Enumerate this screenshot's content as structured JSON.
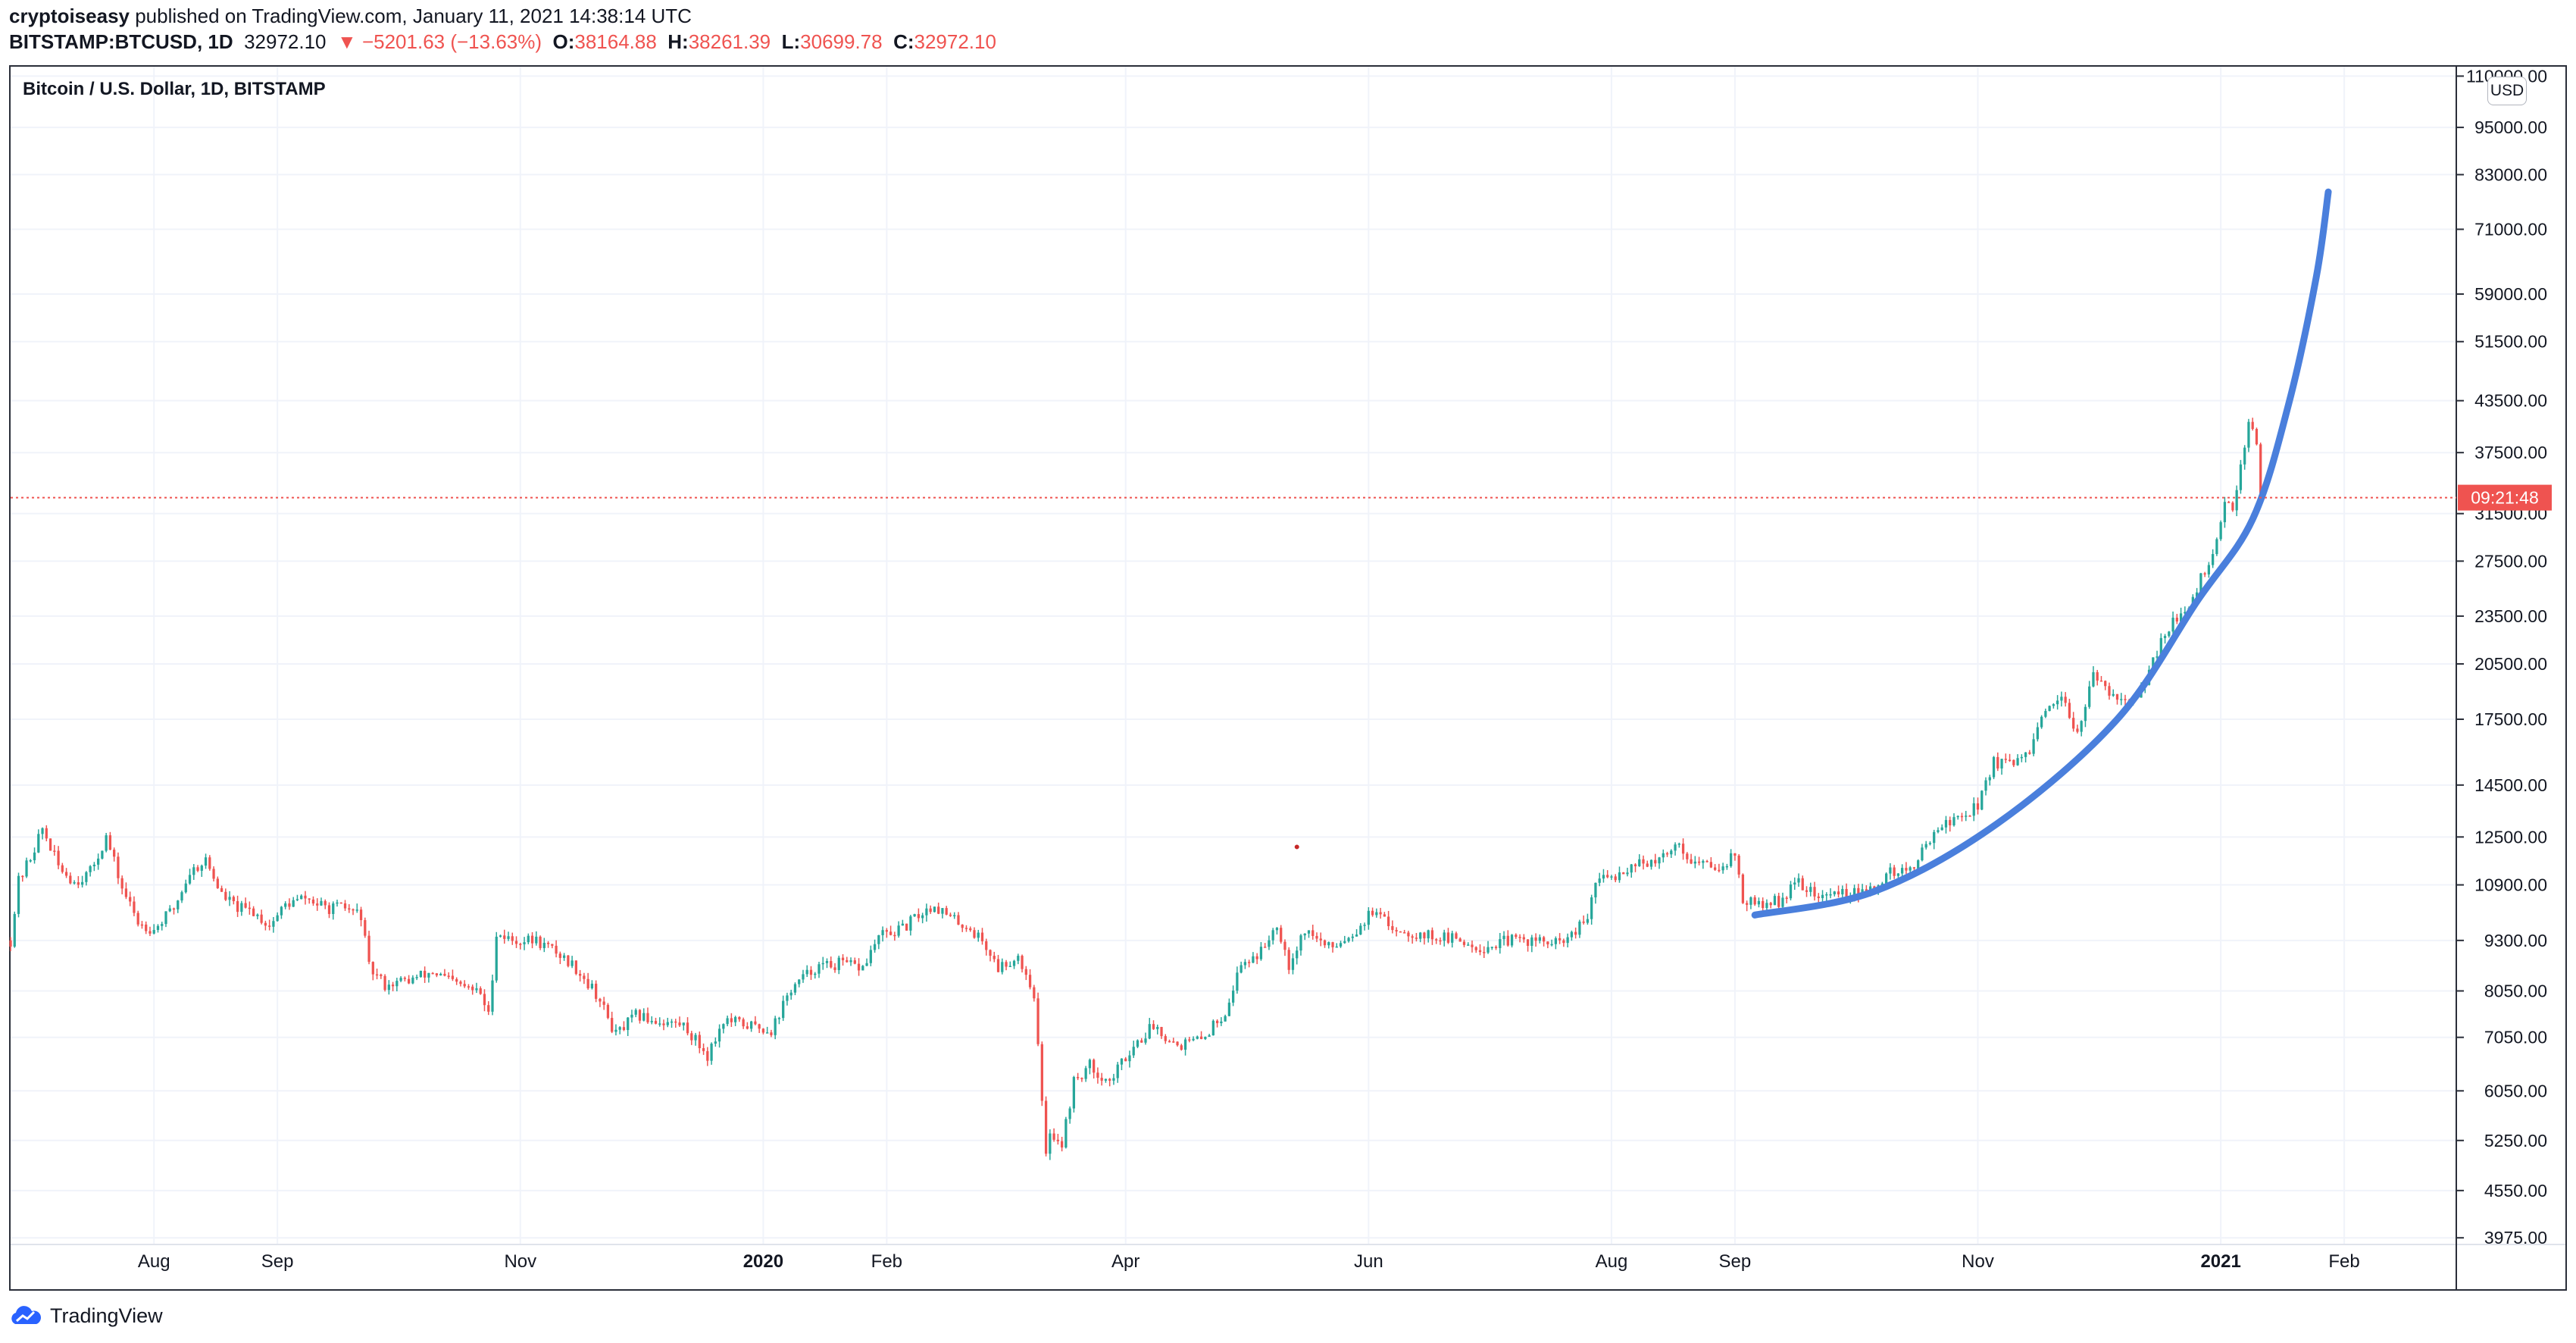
{
  "header": {
    "publisher": "cryptoiseasy",
    "published_text": "published on TradingView.com, January 11, 2021 14:38:14 UTC"
  },
  "ticker": {
    "symbol": "BITSTAMP:BTCUSD, 1D",
    "last": "32972.10",
    "change": "▼ −5201.63 (−13.63%)",
    "o_label": "O:",
    "o": "38164.88",
    "h_label": "H:",
    "h": "38261.39",
    "l_label": "L:",
    "l": "30699.78",
    "c_label": "C:",
    "c": "32972.10"
  },
  "legend": {
    "title": "Bitcoin / U.S. Dollar, 1D, BITSTAMP"
  },
  "price_axis": {
    "currency": "USD",
    "countdown": "09:21:48"
  },
  "footer": {
    "brand": "TradingView"
  },
  "colors": {
    "up": "#26a69a",
    "down": "#ef5350",
    "curve": "#4a7fdc",
    "last_line": "#ef5350",
    "grid": "#f0f3fa"
  },
  "chart_data": {
    "type": "candlestick",
    "scale": "log",
    "ylim": [
      3900,
      113000
    ],
    "yticks": [
      3975,
      4550,
      5250,
      6050,
      7050,
      8050,
      9300,
      10900,
      12500,
      14500,
      17500,
      20500,
      23500,
      27500,
      31500,
      37500,
      43500,
      51500,
      59000,
      71000,
      83000,
      95000,
      110000
    ],
    "ytick_labels": [
      "3975.00",
      "4550.00",
      "5250.00",
      "6050.00",
      "7050.00",
      "8050.00",
      "9300.00",
      "10900.00",
      "12500.00",
      "14500.00",
      "17500.00",
      "20500.00",
      "23500.00",
      "27500.00",
      "31500.00",
      "37500.00",
      "43500.00",
      "51500.00",
      "59000.00",
      "71000.00",
      "83000.00",
      "95000.00",
      "110000.00"
    ],
    "xlim": [
      "2019-06-26",
      "2021-02-28"
    ],
    "xticks": [
      {
        "date": "2019-08-01",
        "label": "Aug"
      },
      {
        "date": "2019-09-01",
        "label": "Sep"
      },
      {
        "date": "2019-11-01",
        "label": "Nov"
      },
      {
        "date": "2020-01-01",
        "label": "2020"
      },
      {
        "date": "2020-02-01",
        "label": "Feb"
      },
      {
        "date": "2020-04-01",
        "label": "Apr"
      },
      {
        "date": "2020-06-01",
        "label": "Jun"
      },
      {
        "date": "2020-08-01",
        "label": "Aug"
      },
      {
        "date": "2020-09-01",
        "label": "Sep"
      },
      {
        "date": "2020-11-01",
        "label": "Nov"
      },
      {
        "date": "2021-01-01",
        "label": "2021"
      },
      {
        "date": "2021-02-01",
        "label": "Feb"
      }
    ],
    "close_path": [
      [
        "2019-06-26",
        9300
      ],
      [
        "2019-06-28",
        11000
      ],
      [
        "2019-07-01",
        11800
      ],
      [
        "2019-07-04",
        12800
      ],
      [
        "2019-07-08",
        11500
      ],
      [
        "2019-07-12",
        11000
      ],
      [
        "2019-07-16",
        11300
      ],
      [
        "2019-07-20",
        12500
      ],
      [
        "2019-07-24",
        10800
      ],
      [
        "2019-07-28",
        9800
      ],
      [
        "2019-08-01",
        9600
      ],
      [
        "2019-08-06",
        10200
      ],
      [
        "2019-08-10",
        11300
      ],
      [
        "2019-08-14",
        11700
      ],
      [
        "2019-08-18",
        10600
      ],
      [
        "2019-08-22",
        10200
      ],
      [
        "2019-08-26",
        10100
      ],
      [
        "2019-08-30",
        9700
      ],
      [
        "2019-09-03",
        10300
      ],
      [
        "2019-09-08",
        10500
      ],
      [
        "2019-09-13",
        10200
      ],
      [
        "2019-09-18",
        10200
      ],
      [
        "2019-09-22",
        10000
      ],
      [
        "2019-09-24",
        8600
      ],
      [
        "2019-09-28",
        8200
      ],
      [
        "2019-10-04",
        8300
      ],
      [
        "2019-10-10",
        8500
      ],
      [
        "2019-10-16",
        8200
      ],
      [
        "2019-10-22",
        8000
      ],
      [
        "2019-10-24",
        7500
      ],
      [
        "2019-10-26",
        9500
      ],
      [
        "2019-10-30",
        9300
      ],
      [
        "2019-11-05",
        9300
      ],
      [
        "2019-11-10",
        9000
      ],
      [
        "2019-11-15",
        8600
      ],
      [
        "2019-11-20",
        8000
      ],
      [
        "2019-11-25",
        7100
      ],
      [
        "2019-11-30",
        7500
      ],
      [
        "2019-12-05",
        7400
      ],
      [
        "2019-12-12",
        7300
      ],
      [
        "2019-12-18",
        6700
      ],
      [
        "2019-12-22",
        7400
      ],
      [
        "2019-12-28",
        7300
      ],
      [
        "2020-01-03",
        7200
      ],
      [
        "2020-01-08",
        8100
      ],
      [
        "2020-01-14",
        8600
      ],
      [
        "2020-01-20",
        8700
      ],
      [
        "2020-01-26",
        8600
      ],
      [
        "2020-01-30",
        9400
      ],
      [
        "2020-02-05",
        9600
      ],
      [
        "2020-02-09",
        10000
      ],
      [
        "2020-02-13",
        10300
      ],
      [
        "2020-02-17",
        9900
      ],
      [
        "2020-02-21",
        9700
      ],
      [
        "2020-02-25",
        9300
      ],
      [
        "2020-02-29",
        8600
      ],
      [
        "2020-03-05",
        8900
      ],
      [
        "2020-03-09",
        8000
      ],
      [
        "2020-03-12",
        5000
      ],
      [
        "2020-03-13",
        5400
      ],
      [
        "2020-03-16",
        5200
      ],
      [
        "2020-03-19",
        6200
      ],
      [
        "2020-03-23",
        6500
      ],
      [
        "2020-03-28",
        6200
      ],
      [
        "2020-04-02",
        6800
      ],
      [
        "2020-04-08",
        7300
      ],
      [
        "2020-04-14",
        6900
      ],
      [
        "2020-04-20",
        7000
      ],
      [
        "2020-04-26",
        7600
      ],
      [
        "2020-04-30",
        8700
      ],
      [
        "2020-05-05",
        9000
      ],
      [
        "2020-05-09",
        9800
      ],
      [
        "2020-05-12",
        8700
      ],
      [
        "2020-05-16",
        9600
      ],
      [
        "2020-05-22",
        9100
      ],
      [
        "2020-05-28",
        9500
      ],
      [
        "2020-06-02",
        10100
      ],
      [
        "2020-06-06",
        9700
      ],
      [
        "2020-06-12",
        9500
      ],
      [
        "2020-06-18",
        9400
      ],
      [
        "2020-06-24",
        9300
      ],
      [
        "2020-06-30",
        9100
      ],
      [
        "2020-07-06",
        9300
      ],
      [
        "2020-07-12",
        9300
      ],
      [
        "2020-07-18",
        9200
      ],
      [
        "2020-07-22",
        9400
      ],
      [
        "2020-07-26",
        9900
      ],
      [
        "2020-07-28",
        11000
      ],
      [
        "2020-08-02",
        11200
      ],
      [
        "2020-08-08",
        11700
      ],
      [
        "2020-08-12",
        11500
      ],
      [
        "2020-08-17",
        12300
      ],
      [
        "2020-08-22",
        11600
      ],
      [
        "2020-08-28",
        11500
      ],
      [
        "2020-09-01",
        11900
      ],
      [
        "2020-09-03",
        10400
      ],
      [
        "2020-09-07",
        10300
      ],
      [
        "2020-09-12",
        10400
      ],
      [
        "2020-09-17",
        11000
      ],
      [
        "2020-09-22",
        10500
      ],
      [
        "2020-09-28",
        10700
      ],
      [
        "2020-10-04",
        10600
      ],
      [
        "2020-10-10",
        11300
      ],
      [
        "2020-10-16",
        11400
      ],
      [
        "2020-10-21",
        12800
      ],
      [
        "2020-10-26",
        13100
      ],
      [
        "2020-11-01",
        13700
      ],
      [
        "2020-11-05",
        15500
      ],
      [
        "2020-11-10",
        15300
      ],
      [
        "2020-11-14",
        16000
      ],
      [
        "2020-11-18",
        17800
      ],
      [
        "2020-11-22",
        18400
      ],
      [
        "2020-11-26",
        17000
      ],
      [
        "2020-11-30",
        19700
      ],
      [
        "2020-12-04",
        19000
      ],
      [
        "2020-12-10",
        18300
      ],
      [
        "2020-12-13",
        19200
      ],
      [
        "2020-12-16",
        21300
      ],
      [
        "2020-12-20",
        23400
      ],
      [
        "2020-12-24",
        23700
      ],
      [
        "2020-12-27",
        26200
      ],
      [
        "2020-12-31",
        28900
      ],
      [
        "2021-01-02",
        32100
      ],
      [
        "2021-01-04",
        31900
      ],
      [
        "2021-01-06",
        36700
      ],
      [
        "2021-01-08",
        40600
      ],
      [
        "2021-01-09",
        40200
      ],
      [
        "2021-01-10",
        38200
      ],
      [
        "2021-01-11",
        32972
      ]
    ],
    "last_price": 32972.1,
    "annotation_curve": {
      "type": "parabola",
      "points": [
        [
          "2020-09-06",
          10000
        ],
        [
          "2020-10-06",
          10700
        ],
        [
          "2020-11-06",
          13000
        ],
        [
          "2020-12-06",
          17500
        ],
        [
          "2020-12-26",
          24500
        ],
        [
          "2021-01-09",
          31000
        ],
        [
          "2021-01-18",
          43000
        ],
        [
          "2021-01-25",
          62000
        ],
        [
          "2021-01-28",
          79000
        ]
      ]
    }
  }
}
